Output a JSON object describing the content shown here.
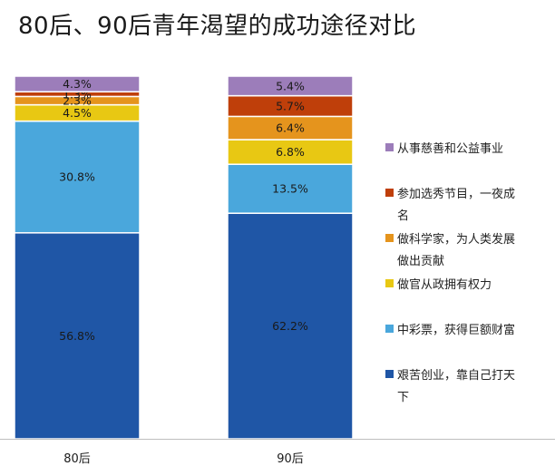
{
  "title": "80后、90后青年渴望的成功途径对比",
  "chart_data": {
    "type": "bar",
    "stacked": true,
    "percent": true,
    "title": "80后、90后青年渴望的成功途径对比",
    "categories": [
      "80后",
      "90后"
    ],
    "series": [
      {
        "name": "艰苦创业，靠自己打天下",
        "legend_lines": [
          "艰苦创业，靠自己打天",
          "下"
        ],
        "color": "#1f56a6",
        "values": [
          56.8,
          62.2
        ],
        "labels": [
          "56.8%",
          "62.2%"
        ]
      },
      {
        "name": "中彩票，获得巨额财富",
        "legend_lines": [
          "中彩票，获得巨额财富"
        ],
        "color": "#4aa7dc",
        "values": [
          30.8,
          13.5
        ],
        "labels": [
          "30.8%",
          "13.5%"
        ]
      },
      {
        "name": "做官从政拥有权力",
        "legend_lines": [
          "做官从政拥有权力"
        ],
        "color": "#e8c813",
        "values": [
          4.5,
          6.8
        ],
        "labels": [
          "4.5%",
          "6.8%"
        ]
      },
      {
        "name": "做科学家，为人类发展做出贡献",
        "legend_lines": [
          "做科学家，为人类发展",
          "做出贡献"
        ],
        "color": "#e5941d",
        "values": [
          2.3,
          6.4
        ],
        "labels": [
          "2.3%",
          "6.4%"
        ]
      },
      {
        "name": "参加选秀节目，一夜成名",
        "legend_lines": [
          "参加选秀节目，一夜成",
          "名"
        ],
        "color": "#bf3f0a",
        "values": [
          1.3,
          5.7
        ],
        "labels": [
          "1.3%",
          "5.7%"
        ]
      },
      {
        "name": "从事慈善和公益事业",
        "legend_lines": [
          "从事慈善和公益事业"
        ],
        "color": "#9c7dba",
        "values": [
          4.3,
          5.4
        ],
        "labels": [
          "4.3%",
          "5.4%"
        ]
      }
    ],
    "ylim": [
      0,
      100
    ],
    "legend_position": "right",
    "grid": false
  }
}
